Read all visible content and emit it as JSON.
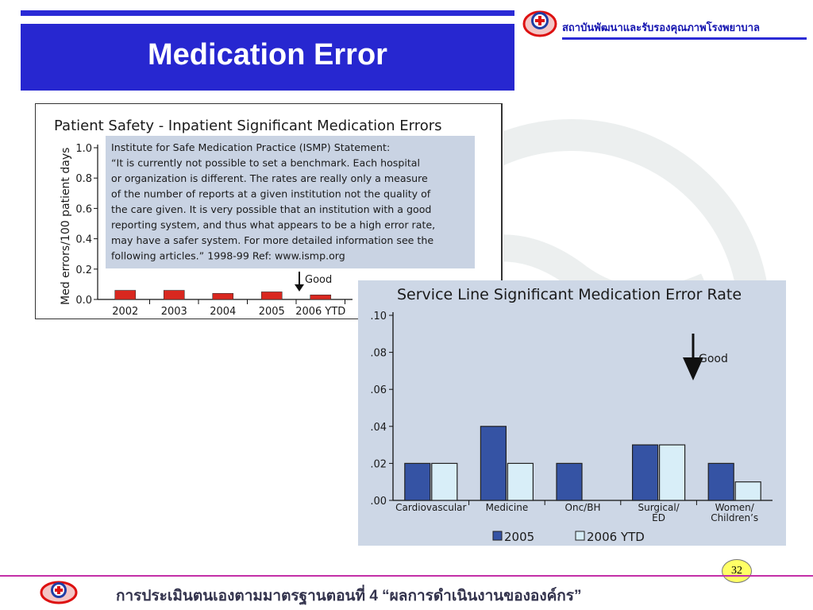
{
  "header": {
    "title": "Medication Error",
    "org_name": "สถาบันพัฒนาและรับรองคุณภาพโรงพยาบาล",
    "colors": {
      "band": "#2727d0",
      "org_text": "#1515b0"
    }
  },
  "footer": {
    "text": "การประเมินตนเองตามมาตรฐานตอนที่ 4 “ผลการดำเนินงานขององค์กร”",
    "page_number": "32"
  },
  "chart_data": [
    {
      "type": "bar",
      "title": "Patient Safety - Inpatient Significant Medication Errors",
      "ylabel": "Med errors/100 patient days",
      "xlabel": "",
      "categories": [
        "2002",
        "2003",
        "2004",
        "2005",
        "2006 YTD"
      ],
      "values": [
        0.06,
        0.06,
        0.04,
        0.05,
        0.03
      ],
      "ylim": [
        0,
        1.0
      ],
      "yticks": [
        "1.0",
        "0.8",
        "0.6",
        "0.4",
        "0.2",
        "0.0"
      ],
      "bar_color": "#d9271f",
      "annotation": "Good",
      "note_lines": [
        "Institute for Safe Medication Practice (ISMP) Statement:",
        "“It is currently not possible to set a benchmark. Each hospital",
        "or organization is different. The rates are really only a measure",
        "of the number of reports at a given institution not the quality of",
        "the care given. It is very possible that an institution with a good",
        "reporting system, and thus what appears to be a high error rate,",
        "may have a safer system. For more detailed information see the",
        "following articles.” 1998-99 Ref: www.ismp.org"
      ],
      "grid": false
    },
    {
      "type": "bar",
      "title": "Service Line Significant Medication Error Rate",
      "xlabel": "",
      "ylabel": "",
      "categories": [
        [
          "Cardiovascular"
        ],
        [
          "Medicine"
        ],
        [
          "Onc/BH"
        ],
        [
          "Surgical/",
          "ED"
        ],
        [
          "Women/",
          "Children’s"
        ]
      ],
      "series": [
        {
          "name": "2005",
          "values": [
            0.02,
            0.04,
            0.02,
            0.03,
            0.02
          ],
          "color": "#3553a4"
        },
        {
          "name": "2006 YTD",
          "values": [
            0.02,
            0.02,
            null,
            0.03,
            0.01
          ],
          "color": "#d8eef8"
        }
      ],
      "ylim": [
        0,
        0.1
      ],
      "yticks": [
        ".10",
        ".08",
        ".06",
        ".04",
        ".02",
        ".00"
      ],
      "annotation": "Good",
      "legend_position": "bottom",
      "grid": false
    }
  ]
}
